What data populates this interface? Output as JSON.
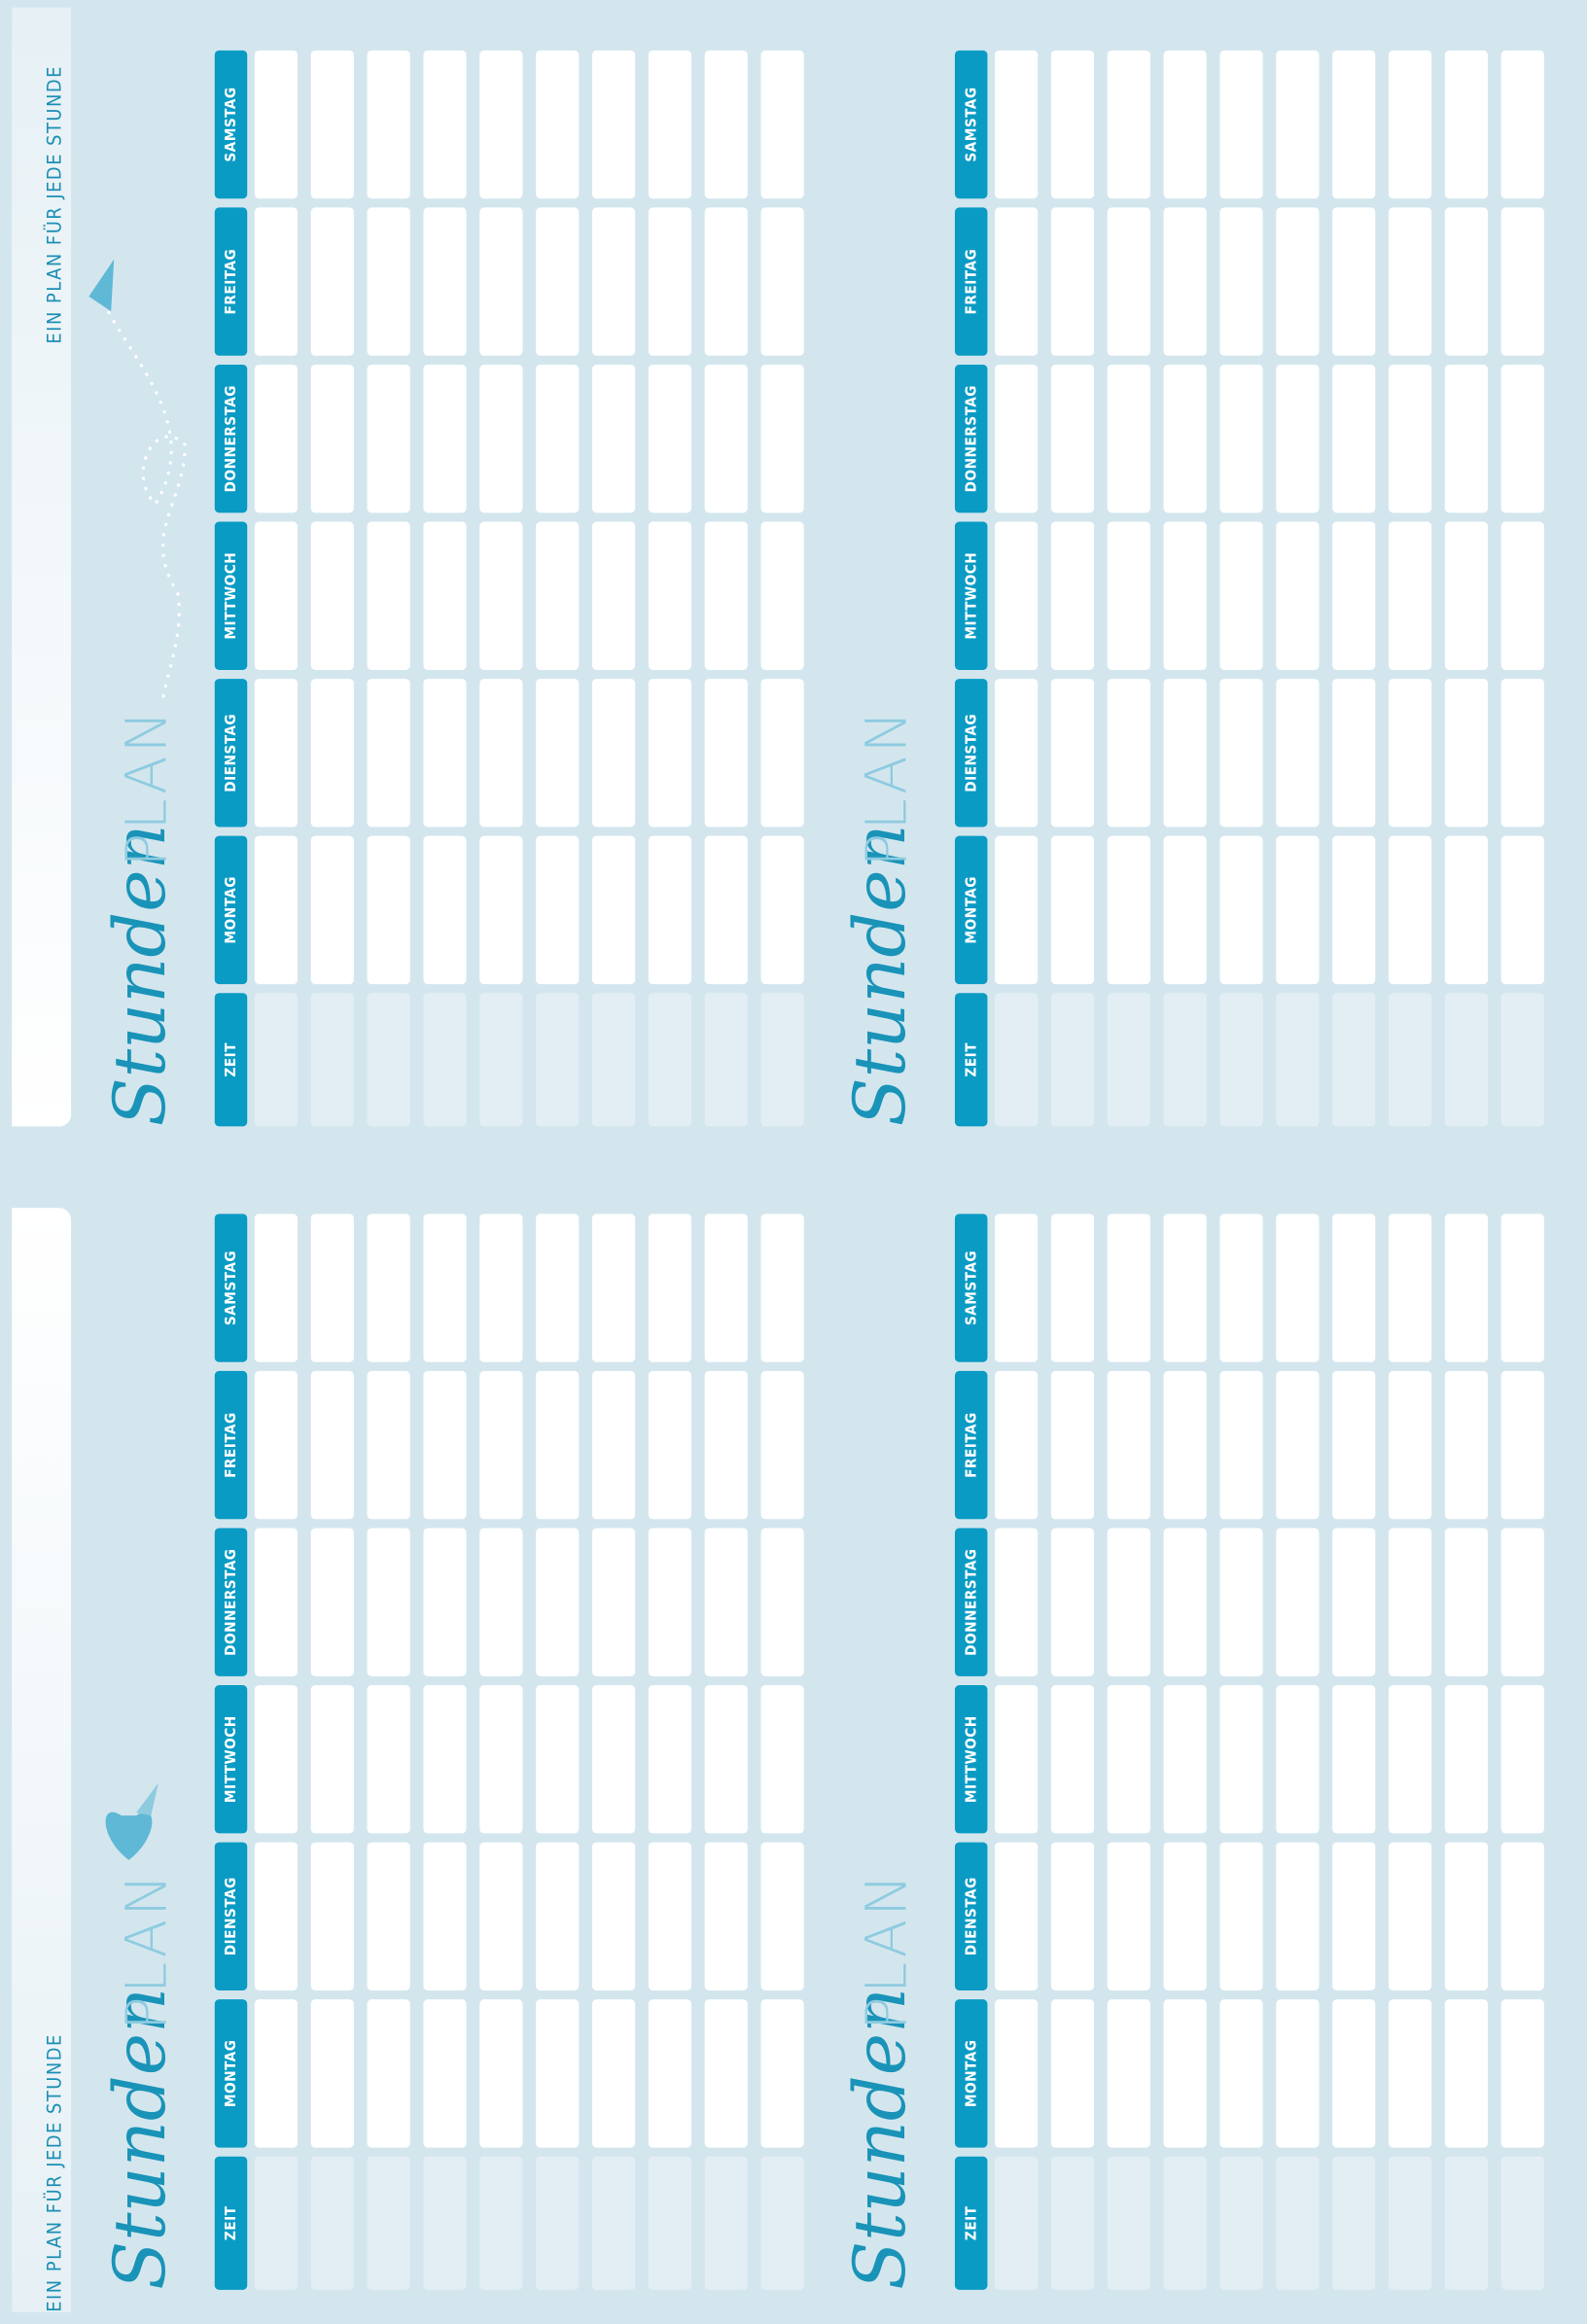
{
  "taglines": [
    "EIN PLAN FÜR JEDE STUNDE",
    "EIN PLAN FÜR JEDE STUNDE"
  ],
  "plans": [
    {
      "title_script": "Stunden",
      "title_plan": "PLAN",
      "days": [
        "ZEIT",
        "MONTAG",
        "DIENSTAG",
        "MITTWOCH",
        "DONNERSTAG",
        "FREITAG",
        "SAMSTAG"
      ]
    },
    {
      "title_script": "Stunden",
      "title_plan": "PLAN",
      "days": [
        "ZEIT",
        "MONTAG",
        "DIENSTAG",
        "MITTWOCH",
        "DONNERSTAG",
        "FREITAG",
        "SAMSTAG"
      ]
    },
    {
      "title_script": "Stunden",
      "title_plan": "PLAN",
      "days": [
        "ZEIT",
        "MONTAG",
        "DIENSTAG",
        "MITTWOCH",
        "DONNERSTAG",
        "FREITAG",
        "SAMSTAG"
      ]
    },
    {
      "title_script": "Stunden",
      "title_plan": "PLAN",
      "days": [
        "ZEIT",
        "MONTAG",
        "DIENSTAG",
        "MITTWOCH",
        "DONNERSTAG",
        "FREITAG",
        "SAMSTAG"
      ]
    }
  ]
}
